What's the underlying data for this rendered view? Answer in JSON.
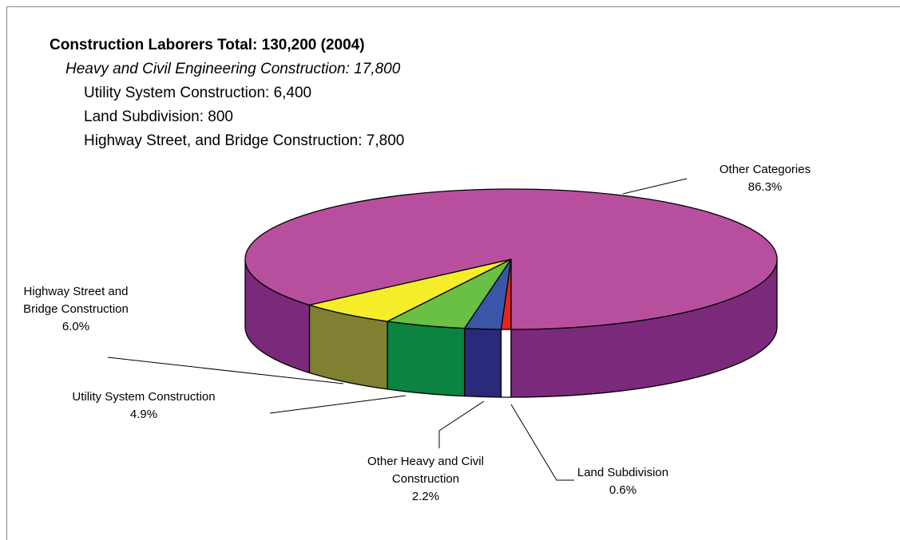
{
  "chart_data": {
    "type": "pie3d",
    "title": "Construction Laborers Total: 130,200 (2004)",
    "subtitle": "Heavy and Civil Engineering Construction: 17,800",
    "annotations": [
      "Utility System Construction: 6,400",
      "Land Subdivision: 800",
      "Highway Street, and Bridge Construction: 7,800"
    ],
    "categories": [
      "Land Subdivision",
      "Other Heavy and Civil Construction",
      "Utility System Construction",
      "Highway Street and Bridge Construction",
      "Other Categories"
    ],
    "values": [
      0.6,
      2.2,
      4.9,
      6.0,
      86.3
    ],
    "value_labels": [
      "0.6%",
      "2.2%",
      "4.9%",
      "6.0%",
      "86.3%"
    ],
    "colors": [
      "#e52421",
      "#3a56a8",
      "#6abf45",
      "#f5ec2a",
      "#b84f9e"
    ],
    "side_colors": [
      "#ffffff",
      "#2a2a7a",
      "#0a8440",
      "#808033",
      "#7b2a7b"
    ]
  }
}
